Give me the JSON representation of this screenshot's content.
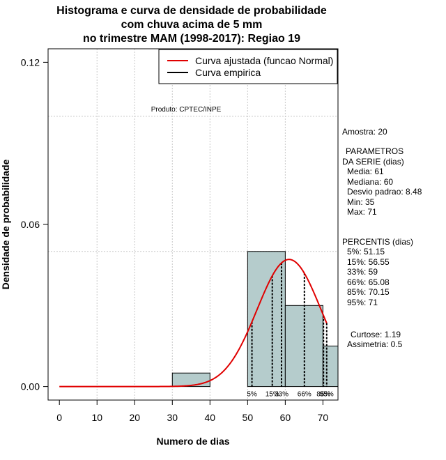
{
  "chart_data": {
    "type": "bar",
    "title_lines": [
      "Histograma e curva de densidade de probabilidade",
      "com chuva acima de 5 mm",
      "no trimestre MAM (1998-2017): Regiao 19"
    ],
    "xlabel": "Numero de dias",
    "ylabel": "Densidade de probabilidade",
    "xlim": [
      -3,
      74
    ],
    "ylim": [
      -0.005,
      0.125
    ],
    "x_ticks": [
      0,
      10,
      20,
      30,
      40,
      50,
      60,
      70
    ],
    "x_tick_labels": [
      "0",
      "10",
      "20",
      "30",
      "40",
      "50",
      "60",
      "70"
    ],
    "y_ticks": [
      0.0,
      0.06,
      0.12
    ],
    "y_tick_labels": [
      "0.00",
      "0.06",
      "0.12"
    ],
    "grid": true,
    "v_grid": [
      10,
      20,
      30,
      40,
      50,
      60
    ],
    "h_grid": [
      0.05,
      0.1
    ],
    "bars": [
      {
        "x0": 30,
        "x1": 40,
        "value": 0.005
      },
      {
        "x0": 50,
        "x1": 60,
        "value": 0.05
      },
      {
        "x0": 60,
        "x1": 70,
        "value": 0.03
      },
      {
        "x0": 70,
        "x1": 74,
        "value": 0.015
      }
    ],
    "bar_color": "#b5cccc",
    "normal_curve": {
      "mean": 61,
      "sd": 8.48,
      "x_start": 0,
      "x_end": 71,
      "color": "#e00000"
    },
    "percentiles": [
      {
        "label": "5%",
        "x": 51.15
      },
      {
        "label": "15%",
        "x": 56.55
      },
      {
        "label": "33%",
        "x": 59
      },
      {
        "label": "66%",
        "x": 65.08
      },
      {
        "label": "85%",
        "x": 70.15
      },
      {
        "label": "95%",
        "x": 71
      }
    ],
    "legend": {
      "position": "top-right",
      "entries": [
        {
          "label": "Curva ajustada (funcao Normal)",
          "color": "#e00000"
        },
        {
          "label": "Curva empirica",
          "color": "#000000"
        }
      ]
    },
    "credit": "Produto: CPTEC/INPE"
  },
  "stats_panel": {
    "sample": "Amostra: 20",
    "params_lines": [
      "PARAMETROS",
      "DA SERIE (dias)"
    ],
    "params": [
      "Media: 61",
      "Mediana: 60",
      "Desvio padrao: 8.48",
      "Min: 35",
      "Max: 71"
    ],
    "percentis_title": "PERCENTIS (dias)",
    "percentis": [
      "5%: 51.15",
      "15%: 56.55",
      "33%: 59",
      "66%: 65.08",
      "85%: 70.15",
      "95%: 71"
    ],
    "shape": [
      "Curtose: 1.19",
      "Assimetria: 0.5"
    ]
  }
}
